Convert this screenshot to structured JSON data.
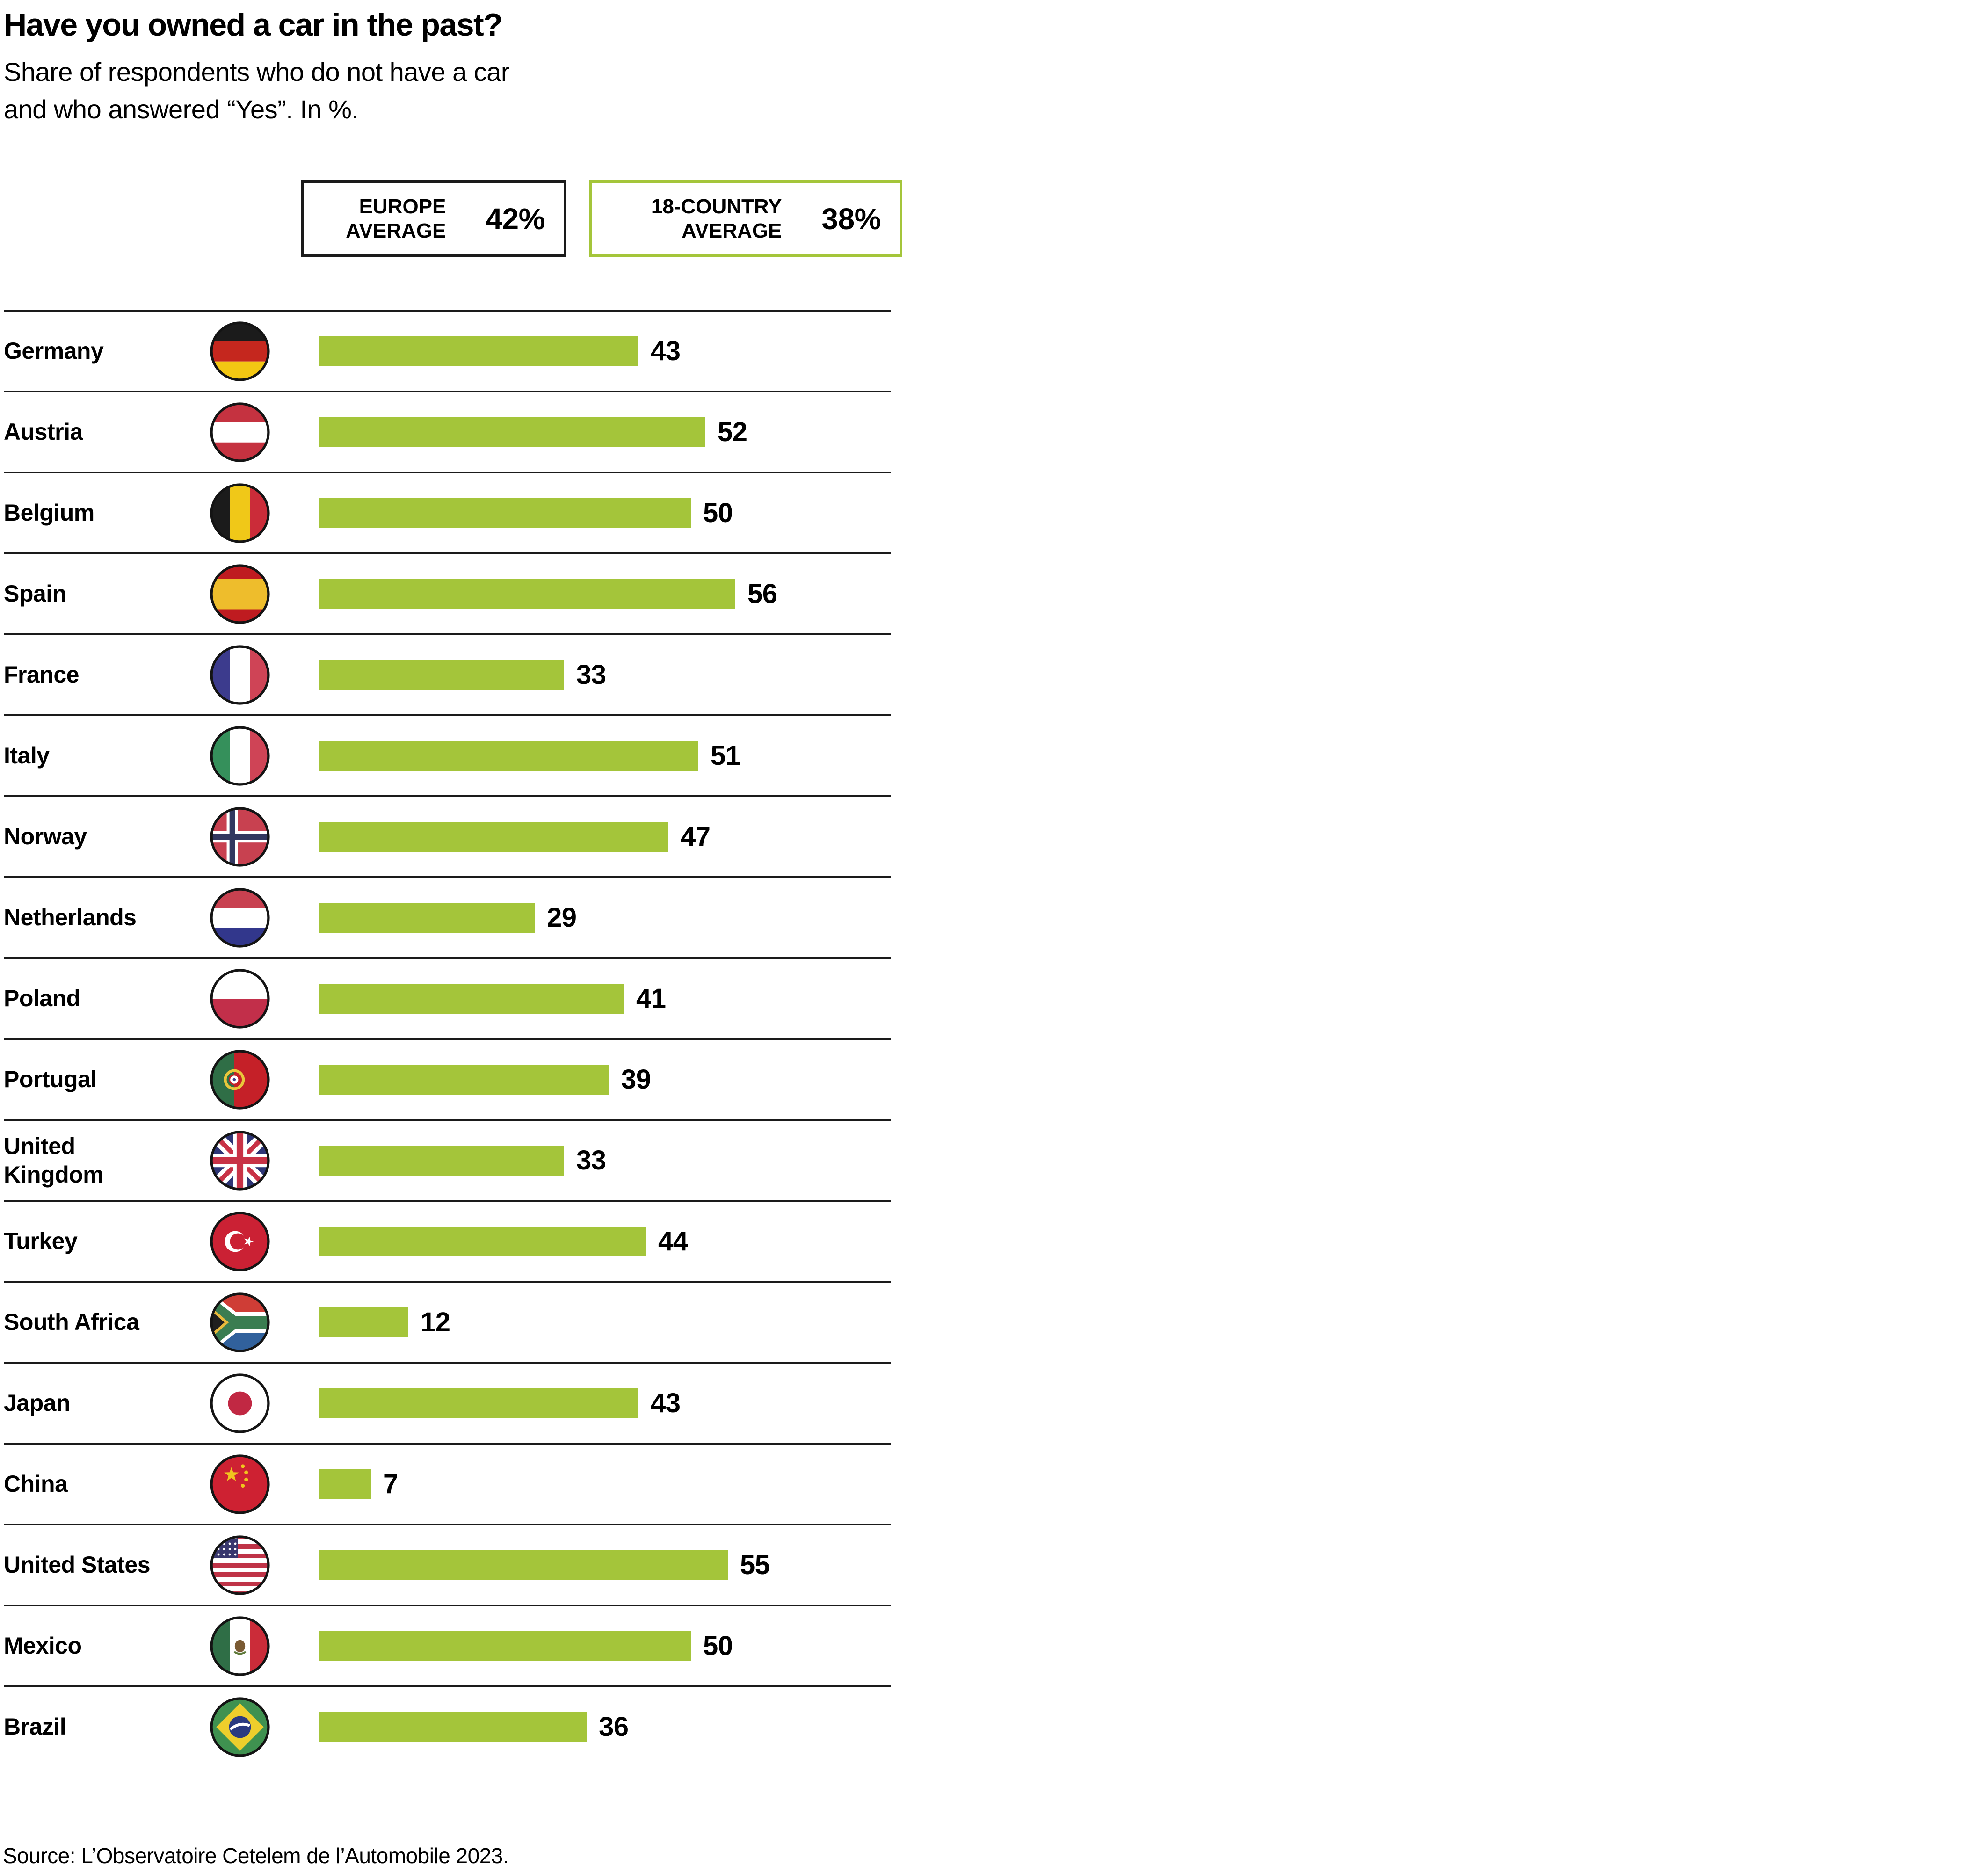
{
  "chart_data": {
    "type": "bar",
    "orientation": "horizontal",
    "title": "Have you owned a car in the past?",
    "subtitle": "Share of respondents who do not have a car and who answered “Yes”. In %.",
    "unit": "%",
    "xlim": [
      0,
      56
    ],
    "grid": false,
    "categories": [
      "Germany",
      "Austria",
      "Belgium",
      "Spain",
      "France",
      "Italy",
      "Norway",
      "Netherlands",
      "Poland",
      "Portugal",
      "United Kingdom",
      "Turkey",
      "South Africa",
      "Japan",
      "China",
      "United States",
      "Mexico",
      "Brazil"
    ],
    "values": [
      43,
      52,
      50,
      56,
      33,
      51,
      47,
      29,
      41,
      39,
      33,
      44,
      12,
      43,
      7,
      55,
      50,
      36
    ],
    "flags": [
      "germany",
      "austria",
      "belgium",
      "spain",
      "france",
      "italy",
      "norway",
      "netherlands",
      "poland",
      "portugal",
      "united-kingdom",
      "turkey",
      "south-africa",
      "japan",
      "china",
      "united-states",
      "mexico",
      "brazil"
    ],
    "averages": [
      {
        "label": "EUROPE AVERAGE",
        "value": 42
      },
      {
        "label": "18-COUNTRY AVERAGE",
        "value": 38
      }
    ]
  },
  "display": {
    "subtitle": "Share of respondents who do not have a car\nand who answered “Yes”. In %.",
    "row_labels": [
      "Germany",
      "Austria",
      "Belgium",
      "Spain",
      "France",
      "Italy",
      "Norway",
      "Netherlands",
      "Poland",
      "Portugal",
      "United\nKingdom",
      "Turkey",
      "South Africa",
      "Japan",
      "China",
      "United States",
      "Mexico",
      "Brazil"
    ],
    "averages": [
      {
        "label": "EUROPE\nAVERAGE",
        "value": "42%"
      },
      {
        "label": "18-COUNTRY\nAVERAGE",
        "value": "38%"
      }
    ],
    "source": "Source: L’Observatoire Cetelem de l’Automobile 2023."
  },
  "colors": {
    "bar_green": "#a4c53a",
    "green_box_border": "#a4c53a",
    "divider_black": "#1a1a1a",
    "text_black": "#000000"
  }
}
